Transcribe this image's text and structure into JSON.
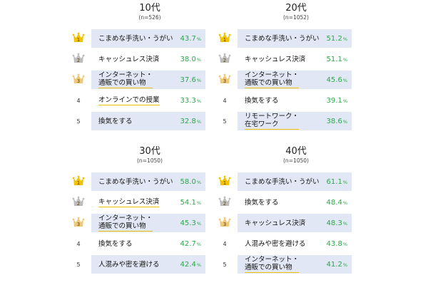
{
  "panels": [
    {
      "age": "10代",
      "n": "(n=526)",
      "items": [
        {
          "rank": "1",
          "label_lines": [
            "こまめな手洗い・うがい"
          ],
          "value": "43.7"
        },
        {
          "rank": "2",
          "label_lines": [
            "キャッシュレス決済"
          ],
          "value": "38.0"
        },
        {
          "rank": "3",
          "label_lines": [
            "インターネット・",
            "通販での買い物"
          ],
          "value": "37.6"
        },
        {
          "rank": "4",
          "label_lines": [
            "オンラインでの授業"
          ],
          "value": "33.3"
        },
        {
          "rank": "5",
          "label_lines": [
            "換気をする"
          ],
          "value": "32.8"
        }
      ]
    },
    {
      "age": "20代",
      "n": "(n=1052)",
      "items": [
        {
          "rank": "1",
          "label_lines": [
            "こまめな手洗い・うがい"
          ],
          "value": "51.2"
        },
        {
          "rank": "2",
          "label_lines": [
            "キャッシュレス決済"
          ],
          "value": "51.1"
        },
        {
          "rank": "3",
          "label_lines": [
            "インターネット・",
            "通販での買い物"
          ],
          "value": "45.6"
        },
        {
          "rank": "4",
          "label_lines": [
            "換気をする"
          ],
          "value": "39.1"
        },
        {
          "rank": "5",
          "label_lines": [
            "リモートワーク・",
            "在宅ワーク"
          ],
          "value": "38.6"
        }
      ]
    },
    {
      "age": "30代",
      "n": "(n=1050)",
      "items": [
        {
          "rank": "1",
          "label_lines": [
            "こまめな手洗い・うがい"
          ],
          "value": "58.0"
        },
        {
          "rank": "2",
          "label_lines": [
            "キャッシュレス決済"
          ],
          "value": "54.1"
        },
        {
          "rank": "3",
          "label_lines": [
            "インターネット・",
            "通販での買い物"
          ],
          "value": "45.3"
        },
        {
          "rank": "4",
          "label_lines": [
            "換気をする"
          ],
          "value": "42.7"
        },
        {
          "rank": "5",
          "label_lines": [
            "人混みや密を避ける"
          ],
          "value": "42.4"
        }
      ]
    },
    {
      "age": "40代",
      "n": "(n=1050)",
      "items": [
        {
          "rank": "1",
          "label_lines": [
            "こまめな手洗い・うがい"
          ],
          "value": "61.1"
        },
        {
          "rank": "2",
          "label_lines": [
            "換気をする"
          ],
          "value": "48.4"
        },
        {
          "rank": "3",
          "label_lines": [
            "キャッシュレス決済"
          ],
          "value": "48.3"
        },
        {
          "rank": "4",
          "label_lines": [
            "人混みや密を避ける"
          ],
          "value": "43.8"
        },
        {
          "rank": "5",
          "label_lines": [
            "インターネット・",
            "通販での買い物"
          ],
          "value": "41.2"
        }
      ]
    }
  ],
  "unit": "%",
  "icons": {
    "rank1": "gold-crown-icon",
    "rank2": "silver-crown-icon",
    "rank3": "bronze-crown-icon"
  },
  "colors": {
    "gold": "#f2c200",
    "silver": "#bdbdbd",
    "bronze": "#f0c87a",
    "bar": "#e1e7f4",
    "value": "#2aa84a",
    "underline": "#f0c200"
  },
  "highlights": [
    {
      "panel": 0,
      "row": 3,
      "style": "underline"
    },
    {
      "panel": 2,
      "row": 1,
      "style": "underline"
    }
  ]
}
